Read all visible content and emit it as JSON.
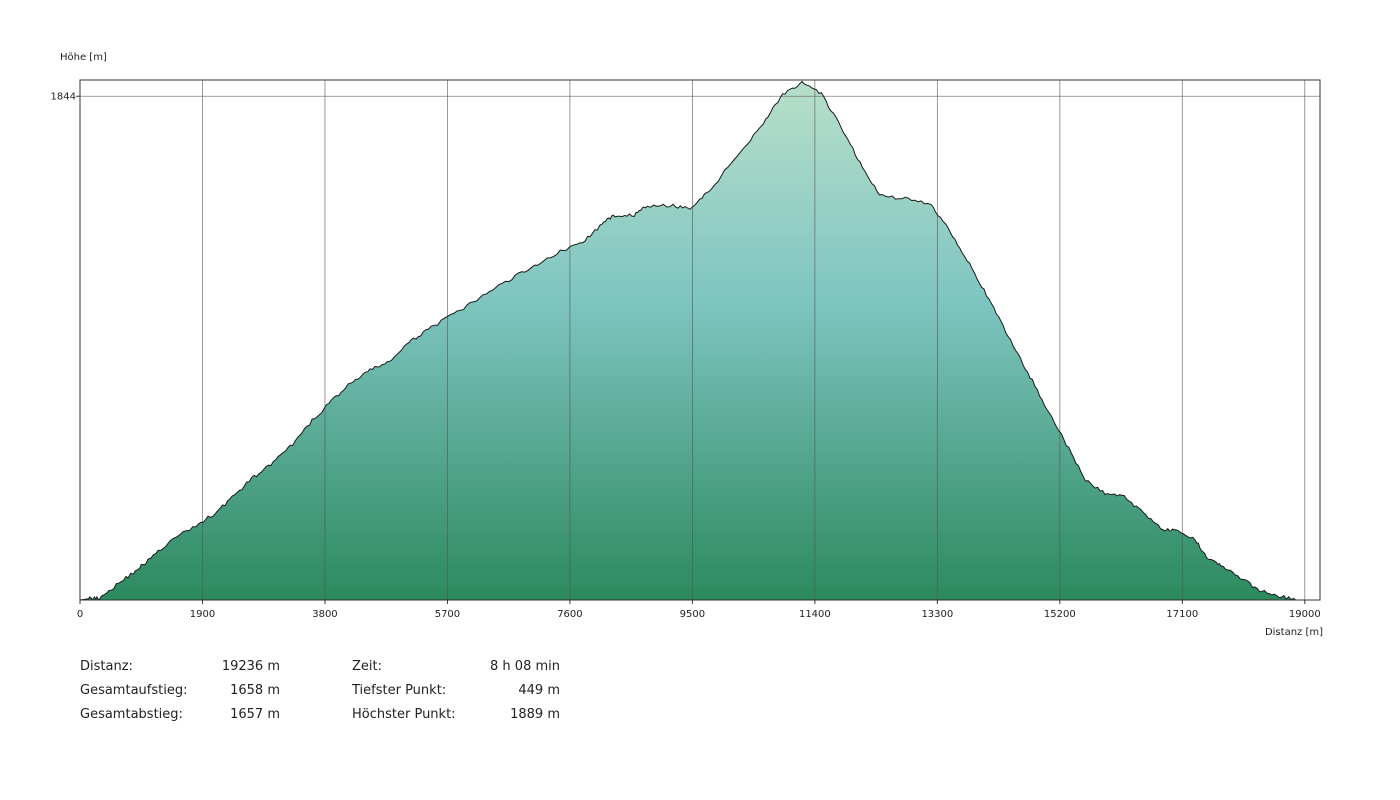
{
  "chart_data": {
    "type": "area",
    "title": "",
    "xlabel": "Distanz [m]",
    "ylabel": "Höhe [m]",
    "xlim": [
      0,
      19236
    ],
    "ylim": [
      449,
      1889
    ],
    "x_ticks": [
      "0",
      "1900",
      "3800",
      "5700",
      "7600",
      "9500",
      "11400",
      "13300",
      "15200",
      "17100",
      "19000"
    ],
    "y_ticks": [
      "1844"
    ],
    "grid": true,
    "series": [
      {
        "name": "",
        "color_top": "#b7dfc9",
        "color_mid": "#7fc5c1",
        "color_bottom": "#2c8a5f",
        "x": [
          0,
          150,
          300,
          600,
          900,
          1100,
          1400,
          1800,
          2100,
          2400,
          2700,
          3000,
          3300,
          3600,
          3900,
          4200,
          4500,
          4800,
          5100,
          5400,
          5800,
          6200,
          6600,
          7000,
          7400,
          7800,
          8100,
          8300,
          8600,
          8800,
          9200,
          9500,
          9800,
          10200,
          10600,
          10900,
          11200,
          11500,
          11800,
          12100,
          12400,
          12800,
          13200,
          13500,
          13800,
          14100,
          14400,
          14700,
          15000,
          15300,
          15600,
          15900,
          16200,
          16500,
          16800,
          17000,
          17300,
          17500,
          17700,
          18000,
          18300,
          18600,
          18900,
          19050,
          19236
        ],
        "y": [
          449,
          453,
          455,
          495,
          535,
          565,
          612,
          655,
          690,
          740,
          790,
          830,
          880,
          945,
          1000,
          1050,
          1085,
          1110,
          1160,
          1200,
          1240,
          1285,
          1330,
          1370,
          1410,
          1440,
          1490,
          1515,
          1515,
          1540,
          1540,
          1535,
          1590,
          1680,
          1770,
          1850,
          1880,
          1850,
          1760,
          1660,
          1570,
          1560,
          1545,
          1470,
          1380,
          1280,
          1180,
          1080,
          980,
          880,
          780,
          745,
          735,
          690,
          645,
          640,
          615,
          565,
          545,
          510,
          475,
          460,
          449,
          449,
          449
        ]
      }
    ]
  },
  "stats": {
    "left": [
      {
        "label": "Distanz:",
        "value": "19236 m"
      },
      {
        "label": "Gesamtaufstieg:",
        "value": "1658 m"
      },
      {
        "label": "Gesamtabstieg:",
        "value": "1657 m"
      }
    ],
    "right": [
      {
        "label": "Zeit:",
        "value": "8 h 08 min"
      },
      {
        "label": "Tiefster Punkt:",
        "value": "449 m"
      },
      {
        "label": "Höchster Punkt:",
        "value": "1889 m"
      }
    ]
  }
}
